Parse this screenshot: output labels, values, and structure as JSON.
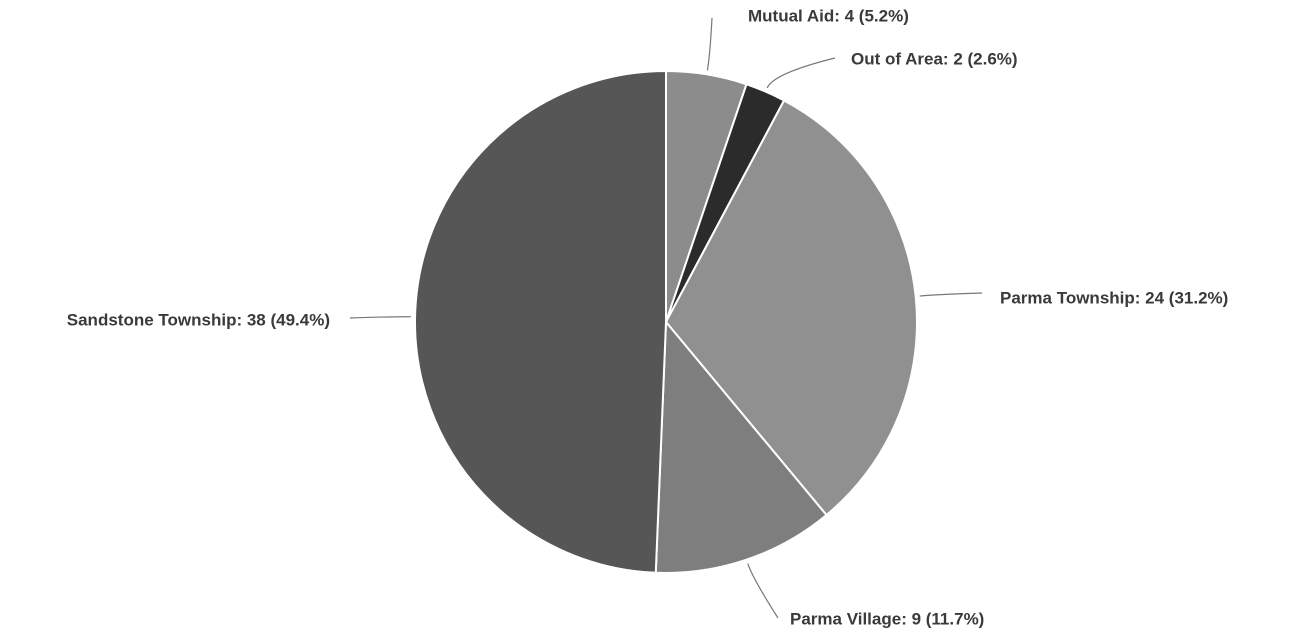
{
  "chart_data": {
    "type": "pie",
    "values": [
      4,
      2,
      24,
      9,
      38
    ],
    "value_labels": [
      "Mutual Aid: 4 (5.2%)",
      "Out of Area: 2 (2.6%)",
      "Parma Township: 24 (31.2%)",
      "Parma Village: 9 (11.7%)",
      "Sandstone Township: 38 (49.4%)"
    ],
    "colors": [
      "#8c8c8c",
      "#2b2b2b",
      "#909090",
      "#7e7e7e",
      "#565656"
    ]
  }
}
